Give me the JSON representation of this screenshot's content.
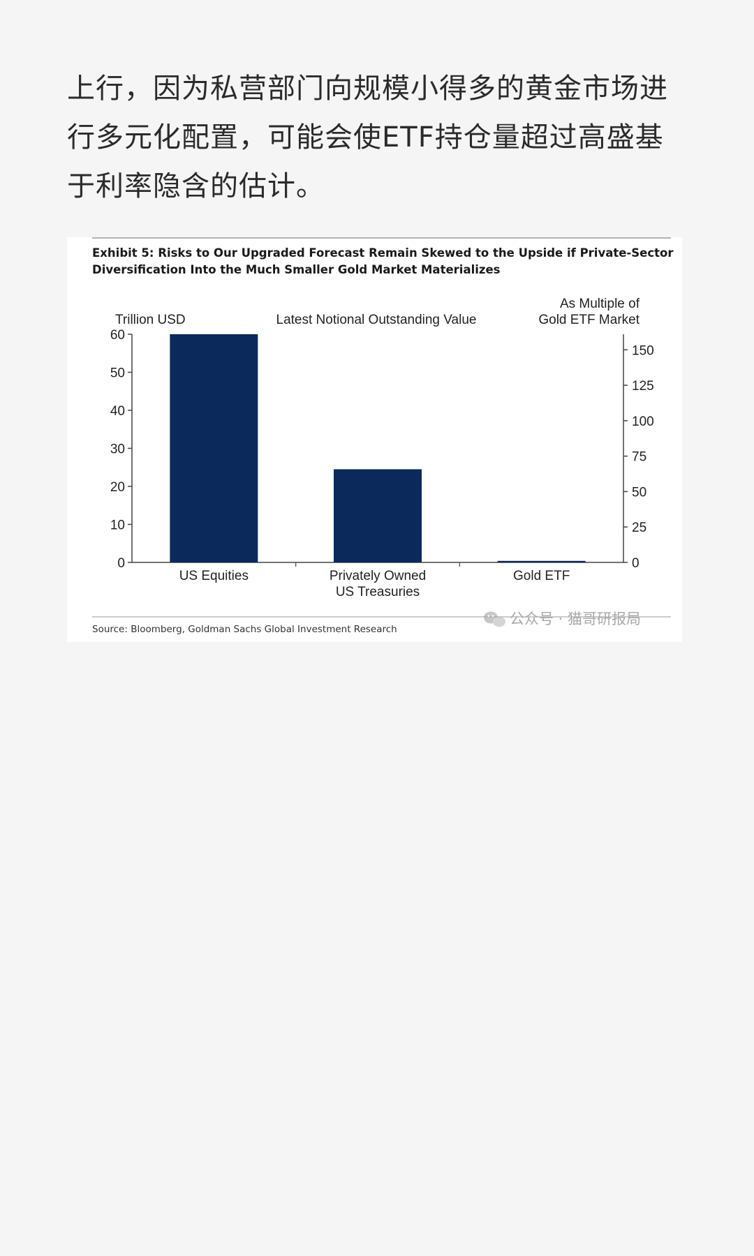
{
  "article": {
    "paragraph": "上行，因为私营部门向规模小得多的黄金市场进行多元化配置，可能会使ETF持仓量超过高盛基于利率隐含的估计。"
  },
  "figure": {
    "title_line1": "Exhibit 5: Risks to Our Upgraded Forecast Remain Skewed to the Upside if Private-Sector",
    "title_line2": "Diversification Into the Much Smaller Gold Market Materializes",
    "source": "Source: Bloomberg, Goldman Sachs Global Investment Research",
    "watermark": "公众号 · 猫哥研报局",
    "watermark_icon": "wechat-icon"
  },
  "chart_data": {
    "type": "bar",
    "title": "Latest Notional Outstanding Value",
    "categories": [
      "US Equities",
      "Privately Owned\nUS Treasuries",
      "Gold ETF"
    ],
    "values": [
      60,
      24.5,
      0.4
    ],
    "ylabel": "Trillion USD",
    "ylim": [
      0,
      60
    ],
    "yticks": [
      0,
      10,
      20,
      30,
      40,
      50,
      60
    ],
    "y2label_line1": "As Multiple of",
    "y2label_line2": "Gold ETF Market",
    "y2lim": [
      0,
      161
    ],
    "y2ticks": [
      0,
      25,
      50,
      75,
      100,
      125,
      150
    ],
    "bar_color": "#0b2a5b",
    "grid": false
  }
}
